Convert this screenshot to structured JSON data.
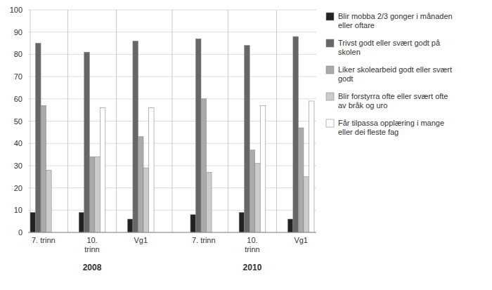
{
  "chart_data": {
    "type": "bar",
    "categories": [
      "7. trinn",
      "10.\ntrinn",
      "Vg1",
      "7. trinn",
      "10.\ntrinn",
      "Vg1"
    ],
    "annotations": [
      "2008",
      "2010"
    ],
    "series": [
      {
        "name": "Blir mobba 2/3 gonger i månaden\neller oftare",
        "color": "#222222",
        "values": [
          9,
          9,
          6,
          8,
          9,
          6
        ]
      },
      {
        "name": "Trivst godt eller svært godt på\nskolen",
        "color": "#666666",
        "values": [
          85,
          81,
          86,
          87,
          84,
          88
        ]
      },
      {
        "name": "Liker skolearbeid godt eller svært\ngodt",
        "color": "#aaaaaa",
        "values": [
          57,
          34,
          43,
          60,
          37,
          47
        ]
      },
      {
        "name": "Blir forstyrra ofte eller svært ofte\nav bråk og uro",
        "color": "#cccccc",
        "values": [
          28,
          34,
          29,
          27,
          31,
          25
        ]
      },
      {
        "name": "Får tilpassa opplæring i mange\neller dei fleste fag",
        "color": "#ffffff",
        "values": [
          0,
          56,
          56,
          0,
          57,
          59
        ]
      }
    ],
    "ylim": [
      0,
      100
    ],
    "yticks": [
      0,
      10,
      20,
      30,
      40,
      50,
      60,
      70,
      80,
      90,
      100
    ],
    "grid": true,
    "legend": "right"
  }
}
